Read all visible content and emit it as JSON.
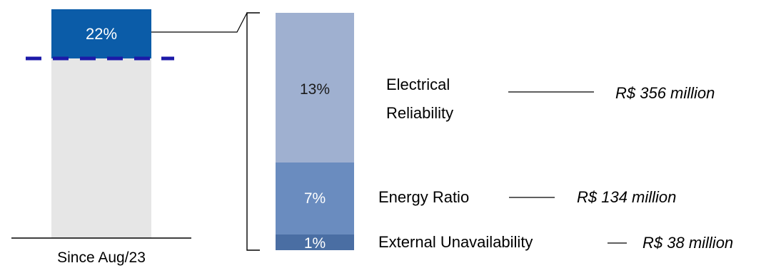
{
  "chart_data": {
    "type": "bar",
    "stacked": true,
    "left_bar": {
      "category": "Since Aug/23",
      "segments": [
        {
          "name": "",
          "label": "22%",
          "value": 22,
          "color": "#0b5ca8"
        }
      ],
      "base_color": "#e6e6e6",
      "reference_line": {
        "style": "dashed",
        "color": "#1c1aa8"
      }
    },
    "breakdown_bar": {
      "segments": [
        {
          "name": "Electrical Reliability",
          "name_lines": [
            "Electrical",
            "Reliability"
          ],
          "label": "13%",
          "value": 13,
          "amount": "R$ 356 million",
          "color": "#9fb0d0"
        },
        {
          "name": "Energy Ratio",
          "name_lines": [
            "Energy Ratio"
          ],
          "label": "7%",
          "value": 7,
          "amount": "R$ 134 million",
          "color": "#6a8cbf"
        },
        {
          "name": "External Unavailability",
          "name_lines": [
            "External Unavailability"
          ],
          "label": "1%",
          "value": 1,
          "amount": "R$ 38 million",
          "color": "#4a6ea3"
        }
      ]
    }
  }
}
